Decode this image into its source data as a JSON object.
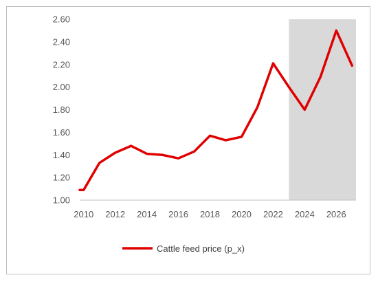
{
  "chart_data": {
    "type": "line",
    "title": "",
    "xlabel": "",
    "ylabel": "",
    "x": [
      2009.75,
      2010,
      2011,
      2012,
      2013,
      2014,
      2015,
      2016,
      2017,
      2018,
      2019,
      2020,
      2021,
      2022,
      2023,
      2024,
      2025,
      2026,
      2027
    ],
    "series": [
      {
        "name": "Cattle feed price (p_x)",
        "color": "#e00000",
        "values": [
          1.09,
          1.09,
          1.33,
          1.42,
          1.48,
          1.41,
          1.4,
          1.37,
          1.43,
          1.57,
          1.53,
          1.56,
          1.82,
          2.21,
          2.0,
          1.8,
          2.09,
          2.5,
          2.19
        ]
      }
    ],
    "xlim": [
      2009.75,
      2027.25
    ],
    "ylim": [
      1.0,
      2.6
    ],
    "x_ticks": [
      "2010",
      "2012",
      "2014",
      "2016",
      "2018",
      "2020",
      "2022",
      "2024",
      "2026"
    ],
    "y_ticks": [
      "1.00",
      "1.20",
      "1.40",
      "1.60",
      "1.80",
      "2.00",
      "2.20",
      "2.40",
      "2.60"
    ],
    "shaded_region": {
      "from": 2023,
      "to": 2027.25,
      "color": "#d9d9d9"
    },
    "grid": false,
    "legend_position": "bottom"
  }
}
